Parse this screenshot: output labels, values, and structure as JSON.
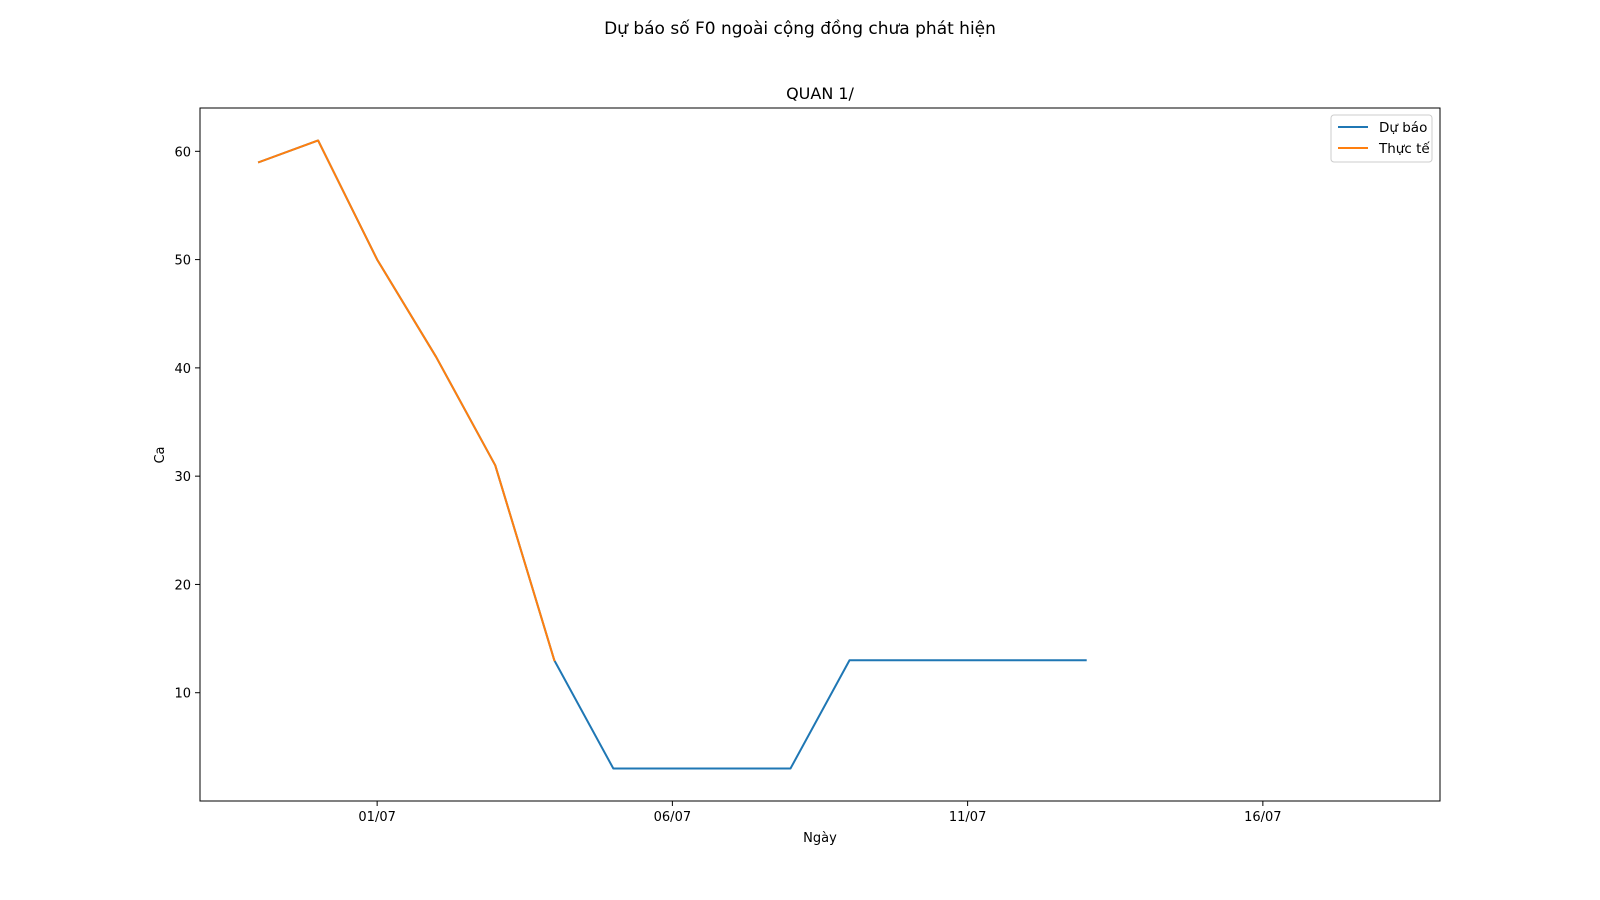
{
  "figure": {
    "suptitle": "Dự báo số F0 ngoài cộng đồng chưa phát hiện"
  },
  "chart_data": {
    "type": "line",
    "title": "QUAN 1/",
    "xlabel": "Ngày",
    "ylabel": "Ca",
    "x_axis": {
      "type": "date",
      "display_format": "DD/MM",
      "range": [
        "2021-06-28",
        "2021-07-19"
      ],
      "ticks": [
        {
          "date": "2021-07-01",
          "label": "01/07"
        },
        {
          "date": "2021-07-06",
          "label": "06/07"
        },
        {
          "date": "2021-07-11",
          "label": "11/07"
        },
        {
          "date": "2021-07-16",
          "label": "16/07"
        }
      ]
    },
    "y_axis": {
      "range": [
        0,
        64
      ],
      "ticks": [
        10,
        20,
        30,
        40,
        50,
        60
      ]
    },
    "grid": false,
    "legend": {
      "position": "top-right"
    },
    "series": [
      {
        "name": "Dự báo",
        "color": "#1f77b4",
        "x": [
          "2021-06-29",
          "2021-06-30",
          "2021-07-01",
          "2021-07-02",
          "2021-07-03",
          "2021-07-04",
          "2021-07-05",
          "2021-07-06",
          "2021-07-07",
          "2021-07-08",
          "2021-07-09",
          "2021-07-10",
          "2021-07-11",
          "2021-07-12",
          "2021-07-13"
        ],
        "y": [
          59,
          61,
          50,
          41,
          31,
          13,
          3,
          3,
          3,
          3,
          13,
          13,
          13,
          13,
          13
        ]
      },
      {
        "name": "Thực tế",
        "color": "#ff7f0e",
        "x": [
          "2021-06-29",
          "2021-06-30",
          "2021-07-01",
          "2021-07-02",
          "2021-07-03",
          "2021-07-04"
        ],
        "y": [
          59,
          61,
          50,
          41,
          31,
          13
        ]
      }
    ]
  }
}
